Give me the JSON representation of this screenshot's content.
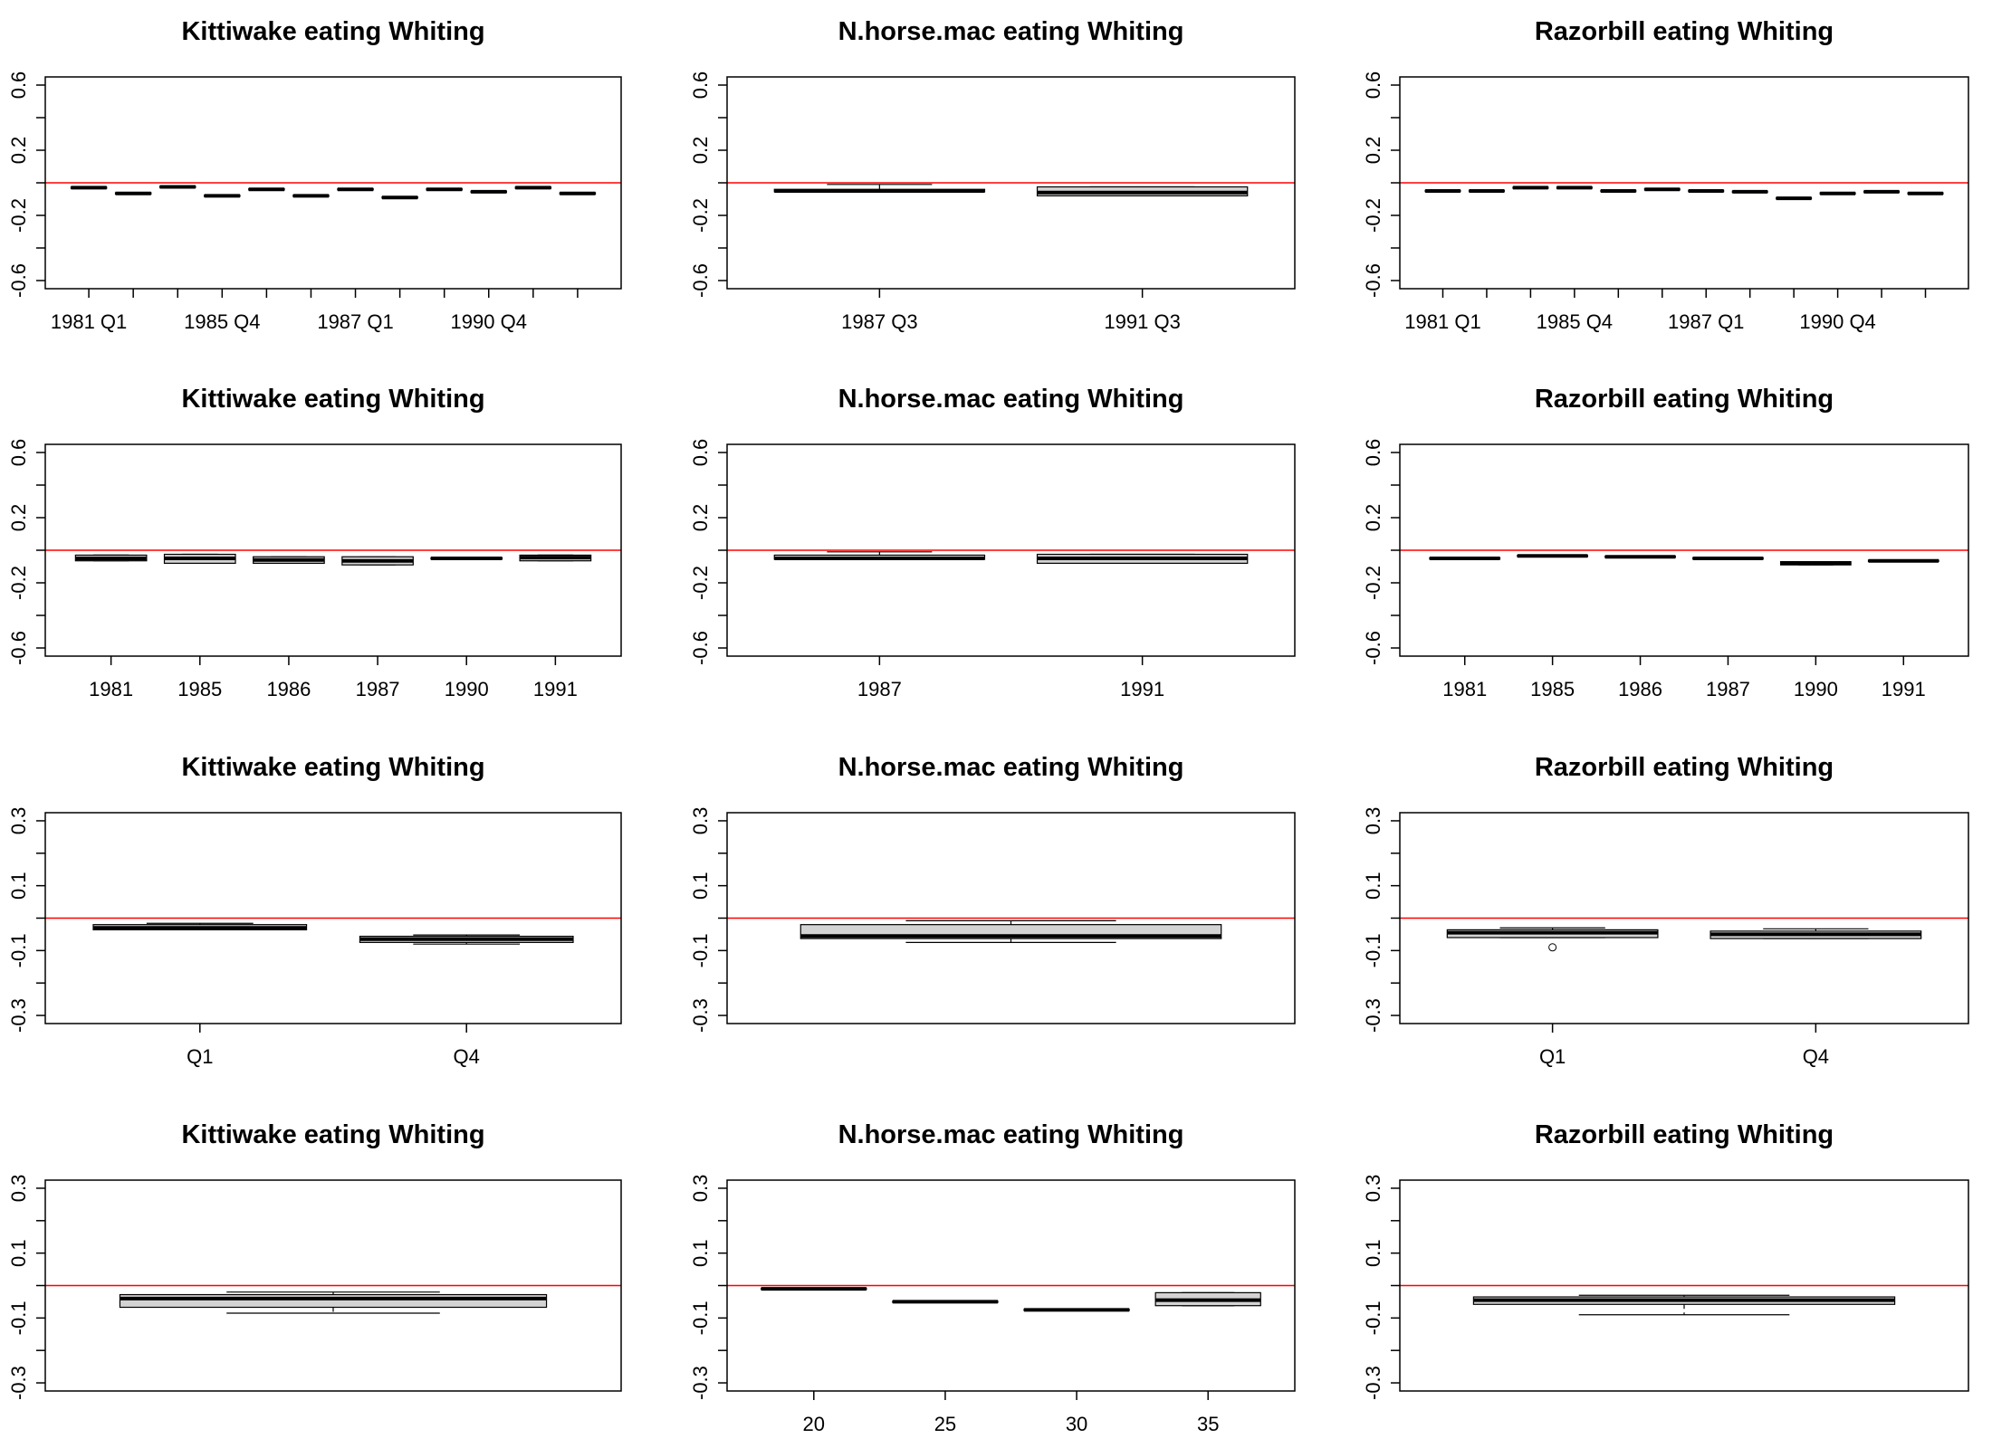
{
  "chart_data": [
    {
      "type": "boxplot",
      "title": "Kittiwake eating Whiting",
      "categories": [
        "1981 Q1",
        null,
        null,
        "1985 Q4",
        null,
        null,
        "1987 Q1",
        null,
        null,
        "1990 Q4",
        null,
        null
      ],
      "boxes": [
        [
          -0.034,
          -0.034,
          -0.03,
          -0.026,
          -0.026
        ],
        [
          -0.069,
          -0.069,
          -0.065,
          -0.061,
          -0.061
        ],
        [
          -0.029,
          -0.029,
          -0.025,
          -0.021,
          -0.021
        ],
        [
          -0.084,
          -0.084,
          -0.08,
          -0.076,
          -0.076
        ],
        [
          -0.044,
          -0.044,
          -0.04,
          -0.036,
          -0.036
        ],
        [
          -0.084,
          -0.084,
          -0.08,
          -0.076,
          -0.076
        ],
        [
          -0.044,
          -0.044,
          -0.04,
          -0.036,
          -0.036
        ],
        [
          -0.094,
          -0.094,
          -0.09,
          -0.086,
          -0.086
        ],
        [
          -0.044,
          -0.044,
          -0.04,
          -0.036,
          -0.036
        ],
        [
          -0.059,
          -0.059,
          -0.055,
          -0.051,
          -0.051
        ],
        [
          -0.034,
          -0.034,
          -0.03,
          -0.026,
          -0.026
        ],
        [
          -0.069,
          -0.069,
          -0.065,
          -0.061,
          -0.061
        ]
      ],
      "ylim": [
        -0.65,
        0.65
      ],
      "yticks": [
        -0.6,
        -0.2,
        0.2,
        0.6
      ],
      "yticks_minor": [
        -0.4,
        0,
        0.4
      ],
      "reference_line": {
        "value": 0,
        "color": "#ff0000"
      },
      "box_color": "#d3d3d3"
    },
    {
      "type": "boxplot",
      "title": "N.horse.mac eating Whiting",
      "categories": [
        "1987 Q3",
        "1991 Q3"
      ],
      "boxes": [
        [
          -0.055,
          -0.055,
          -0.05,
          -0.04,
          -0.01
        ],
        [
          -0.08,
          -0.08,
          -0.06,
          -0.025,
          -0.025
        ]
      ],
      "ylim": [
        -0.65,
        0.65
      ],
      "yticks": [
        -0.6,
        -0.2,
        0.2,
        0.6
      ],
      "yticks_minor": [
        -0.4,
        0,
        0.4
      ],
      "reference_line": {
        "value": 0,
        "color": "#ff0000"
      },
      "box_color": "#d3d3d3"
    },
    {
      "type": "boxplot",
      "title": "Razorbill eating Whiting",
      "categories": [
        "1981 Q1",
        null,
        null,
        "1985 Q4",
        null,
        null,
        "1987 Q1",
        null,
        null,
        "1990 Q4",
        null,
        null
      ],
      "boxes": [
        [
          -0.054,
          -0.054,
          -0.05,
          -0.046,
          -0.046
        ],
        [
          -0.054,
          -0.054,
          -0.05,
          -0.046,
          -0.046
        ],
        [
          -0.034,
          -0.034,
          -0.03,
          -0.026,
          -0.026
        ],
        [
          -0.034,
          -0.034,
          -0.03,
          -0.026,
          -0.026
        ],
        [
          -0.054,
          -0.054,
          -0.05,
          -0.046,
          -0.046
        ],
        [
          -0.044,
          -0.044,
          -0.04,
          -0.036,
          -0.036
        ],
        [
          -0.054,
          -0.054,
          -0.05,
          -0.046,
          -0.046
        ],
        [
          -0.059,
          -0.059,
          -0.055,
          -0.051,
          -0.051
        ],
        [
          -0.099,
          -0.099,
          -0.095,
          -0.091,
          -0.091
        ],
        [
          -0.069,
          -0.069,
          -0.065,
          -0.061,
          -0.061
        ],
        [
          -0.059,
          -0.059,
          -0.055,
          -0.051,
          -0.051
        ],
        [
          -0.069,
          -0.069,
          -0.065,
          -0.061,
          -0.061
        ]
      ],
      "ylim": [
        -0.65,
        0.65
      ],
      "yticks": [
        -0.6,
        -0.2,
        0.2,
        0.6
      ],
      "yticks_minor": [
        -0.4,
        0,
        0.4
      ],
      "reference_line": {
        "value": 0,
        "color": "#ff0000"
      },
      "box_color": "#d3d3d3"
    },
    {
      "type": "boxplot",
      "title": "Kittiwake eating Whiting",
      "categories": [
        "1981",
        "1985",
        "1986",
        "1987",
        "1990",
        "1991"
      ],
      "boxes": [
        [
          -0.065,
          -0.065,
          -0.05,
          -0.03,
          -0.03
        ],
        [
          -0.08,
          -0.08,
          -0.05,
          -0.025,
          -0.025
        ],
        [
          -0.08,
          -0.08,
          -0.06,
          -0.04,
          -0.04
        ],
        [
          -0.09,
          -0.09,
          -0.065,
          -0.04,
          -0.04
        ],
        [
          -0.054,
          -0.054,
          -0.05,
          -0.046,
          -0.046
        ],
        [
          -0.065,
          -0.065,
          -0.045,
          -0.03,
          -0.03
        ]
      ],
      "ylim": [
        -0.65,
        0.65
      ],
      "yticks": [
        -0.6,
        -0.2,
        0.2,
        0.6
      ],
      "yticks_minor": [
        -0.4,
        0,
        0.4
      ],
      "reference_line": {
        "value": 0,
        "color": "#ff0000"
      },
      "box_color": "#d3d3d3"
    },
    {
      "type": "boxplot",
      "title": "N.horse.mac eating Whiting",
      "categories": [
        "1987",
        "1991"
      ],
      "boxes": [
        [
          -0.055,
          -0.055,
          -0.05,
          -0.03,
          -0.01
        ],
        [
          -0.08,
          -0.08,
          -0.05,
          -0.025,
          -0.025
        ]
      ],
      "ylim": [
        -0.65,
        0.65
      ],
      "yticks": [
        -0.6,
        -0.2,
        0.2,
        0.6
      ],
      "yticks_minor": [
        -0.4,
        0,
        0.4
      ],
      "reference_line": {
        "value": 0,
        "color": "#ff0000"
      },
      "box_color": "#d3d3d3"
    },
    {
      "type": "boxplot",
      "title": "Razorbill eating Whiting",
      "categories": [
        "1981",
        "1985",
        "1986",
        "1987",
        "1990",
        "1991"
      ],
      "boxes": [
        [
          -0.054,
          -0.054,
          -0.05,
          -0.046,
          -0.046
        ],
        [
          -0.039,
          -0.039,
          -0.035,
          -0.031,
          -0.031
        ],
        [
          -0.044,
          -0.044,
          -0.04,
          -0.036,
          -0.036
        ],
        [
          -0.054,
          -0.054,
          -0.05,
          -0.046,
          -0.046
        ],
        [
          -0.09,
          -0.09,
          -0.08,
          -0.07,
          -0.07
        ],
        [
          -0.069,
          -0.069,
          -0.065,
          -0.061,
          -0.061
        ]
      ],
      "ylim": [
        -0.65,
        0.65
      ],
      "yticks": [
        -0.6,
        -0.2,
        0.2,
        0.6
      ],
      "yticks_minor": [
        -0.4,
        0,
        0.4
      ],
      "reference_line": {
        "value": 0,
        "color": "#ff0000"
      },
      "box_color": "#d3d3d3"
    },
    {
      "type": "boxplot",
      "title": "Kittiwake eating Whiting",
      "categories": [
        "Q1",
        "Q4"
      ],
      "boxes": [
        [
          -0.036,
          -0.036,
          -0.03,
          -0.02,
          -0.016
        ],
        [
          -0.08,
          -0.075,
          -0.065,
          -0.056,
          -0.052
        ]
      ],
      "ylim": [
        -0.325,
        0.325
      ],
      "yticks": [
        -0.3,
        -0.1,
        0.1,
        0.3
      ],
      "yticks_minor": [
        -0.2,
        0,
        0.2
      ],
      "reference_line": {
        "value": 0,
        "color": "#ff0000"
      },
      "box_color": "#d3d3d3"
    },
    {
      "type": "boxplot",
      "title": "N.horse.mac eating Whiting",
      "categories": [
        null
      ],
      "boxes": [
        [
          -0.075,
          -0.063,
          -0.055,
          -0.02,
          -0.008
        ]
      ],
      "ylim": [
        -0.325,
        0.325
      ],
      "yticks": [
        -0.3,
        -0.1,
        0.1,
        0.3
      ],
      "yticks_minor": [
        -0.2,
        0,
        0.2
      ],
      "reference_line": {
        "value": 0,
        "color": "#ff0000"
      },
      "box_color": "#d3d3d3"
    },
    {
      "type": "boxplot",
      "title": "Razorbill eating Whiting",
      "categories": [
        "Q1",
        "Q4"
      ],
      "boxes": [
        [
          -0.06,
          -0.06,
          -0.045,
          -0.036,
          -0.03
        ],
        [
          -0.063,
          -0.063,
          -0.05,
          -0.04,
          -0.033
        ]
      ],
      "outliers": [
        [
          -0.09
        ],
        []
      ],
      "ylim": [
        -0.325,
        0.325
      ],
      "yticks": [
        -0.3,
        -0.1,
        0.1,
        0.3
      ],
      "yticks_minor": [
        -0.2,
        0,
        0.2
      ],
      "reference_line": {
        "value": 0,
        "color": "#ff0000"
      },
      "box_color": "#d3d3d3"
    },
    {
      "type": "boxplot",
      "title": "Kittiwake eating Whiting",
      "categories": [
        null
      ],
      "boxes": [
        [
          -0.085,
          -0.067,
          -0.04,
          -0.028,
          -0.02
        ]
      ],
      "ylim": [
        -0.325,
        0.325
      ],
      "yticks": [
        -0.3,
        -0.1,
        0.1,
        0.3
      ],
      "yticks_minor": [
        -0.2,
        0,
        0.2
      ],
      "reference_line": {
        "value": 0,
        "color": "#ff0000"
      },
      "box_color": "#d3d3d3"
    },
    {
      "type": "boxplot",
      "title": "N.horse.mac eating Whiting",
      "categories": [
        "20",
        "25",
        "30",
        "35"
      ],
      "boxes": [
        [
          -0.012,
          -0.012,
          -0.01,
          -0.008,
          -0.008
        ],
        [
          -0.052,
          -0.052,
          -0.05,
          -0.048,
          -0.048
        ],
        [
          -0.077,
          -0.077,
          -0.075,
          -0.073,
          -0.073
        ],
        [
          -0.062,
          -0.062,
          -0.045,
          -0.022,
          -0.022
        ]
      ],
      "ylim": [
        -0.325,
        0.325
      ],
      "yticks": [
        -0.3,
        -0.1,
        0.1,
        0.3
      ],
      "yticks_minor": [
        -0.2,
        0,
        0.2
      ],
      "reference_line": {
        "value": 0,
        "color": "#ff0000"
      },
      "box_color": "#d3d3d3"
    },
    {
      "type": "boxplot",
      "title": "Razorbill eating Whiting",
      "categories": [
        null
      ],
      "boxes": [
        [
          -0.09,
          -0.058,
          -0.045,
          -0.035,
          -0.03
        ]
      ],
      "ylim": [
        -0.325,
        0.325
      ],
      "yticks": [
        -0.3,
        -0.1,
        0.1,
        0.3
      ],
      "yticks_minor": [
        -0.2,
        0,
        0.2
      ],
      "reference_line": {
        "value": 0,
        "color": "#ff0000"
      },
      "box_color": "#d3d3d3"
    }
  ]
}
